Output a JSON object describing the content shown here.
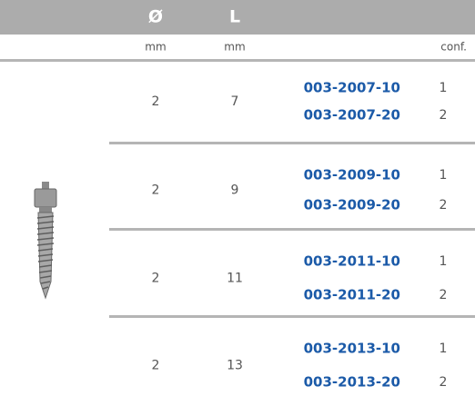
{
  "header": {
    "columns": [
      "Ø",
      "L"
    ],
    "units": [
      "mm",
      "mm",
      "conf."
    ]
  },
  "groups": [
    {
      "diameter": 2,
      "length": 7,
      "items": [
        {
          "code": "003-2007-10",
          "conf": 1
        },
        {
          "code": "003-2007-20",
          "conf": 2
        }
      ]
    },
    {
      "diameter": 2,
      "length": 9,
      "items": [
        {
          "code": "003-2009-10",
          "conf": 1
        },
        {
          "code": "003-2009-20",
          "conf": 2
        }
      ]
    },
    {
      "diameter": 2,
      "length": 11,
      "items": [
        {
          "code": "003-2011-10",
          "conf": 1
        },
        {
          "code": "003-2011-20",
          "conf": 2
        }
      ]
    },
    {
      "diameter": 2,
      "length": 13,
      "items": [
        {
          "code": "003-2013-10",
          "conf": 1
        },
        {
          "code": "003-2013-20",
          "conf": 2
        }
      ]
    }
  ]
}
